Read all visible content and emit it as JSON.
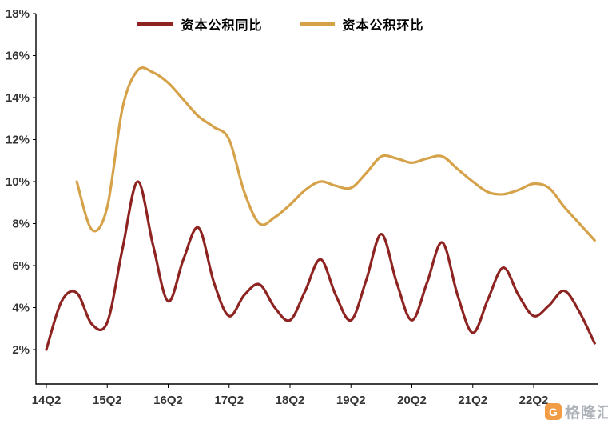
{
  "watermark": {
    "logo_letter": "G",
    "text": "格隆汇",
    "logo_color": "#F08519",
    "text_color": "#9aa0a8"
  },
  "chart_data": {
    "type": "line",
    "title": "",
    "legend_position": "top",
    "grid": false,
    "background": "#ffffff",
    "axis_color": "#000000",
    "y_axis": {
      "min": 2,
      "max": 18,
      "step": 2,
      "unit": "%",
      "tick_labels": [
        "2%",
        "4%",
        "6%",
        "8%",
        "10%",
        "12%",
        "14%",
        "16%",
        "18%"
      ]
    },
    "x_axis": {
      "tick_labels": [
        "14Q2",
        "15Q2",
        "16Q2",
        "17Q2",
        "18Q2",
        "19Q2",
        "20Q2",
        "21Q2",
        "22Q2"
      ]
    },
    "categories": [
      "14Q2",
      "14Q3",
      "14Q4",
      "15Q1",
      "15Q2",
      "15Q3",
      "15Q4",
      "16Q1",
      "16Q2",
      "16Q3",
      "16Q4",
      "17Q1",
      "17Q2",
      "17Q3",
      "17Q4",
      "18Q1",
      "18Q2",
      "18Q3",
      "18Q4",
      "19Q1",
      "19Q2",
      "19Q3",
      "19Q4",
      "20Q1",
      "20Q2",
      "20Q3",
      "20Q4",
      "21Q1",
      "21Q2",
      "21Q3",
      "21Q4",
      "22Q1",
      "22Q2",
      "22Q3",
      "22Q4",
      "23Q1",
      "23Q2"
    ],
    "series": [
      {
        "id": "yoy",
        "name": "资本公积同比",
        "color": "#8E2421",
        "values": [
          2.0,
          4.3,
          4.7,
          3.2,
          3.3,
          6.8,
          10.0,
          7.0,
          4.3,
          6.3,
          7.8,
          5.2,
          3.6,
          4.6,
          5.1,
          4.0,
          3.4,
          4.8,
          6.3,
          4.6,
          3.4,
          5.3,
          7.5,
          5.2,
          3.4,
          5.2,
          7.1,
          4.6,
          2.8,
          4.4,
          5.9,
          4.6,
          3.6,
          4.1,
          4.8,
          3.8,
          2.3
        ]
      },
      {
        "id": "qoq",
        "name": "资本公积环比",
        "color": "#D5A249",
        "values": [
          null,
          null,
          10.0,
          7.7,
          8.8,
          13.5,
          15.3,
          15.2,
          14.7,
          13.9,
          13.1,
          12.6,
          12.0,
          9.5,
          8.0,
          8.3,
          8.9,
          9.6,
          10.0,
          9.8,
          9.7,
          10.4,
          11.2,
          11.1,
          10.9,
          11.1,
          11.2,
          10.6,
          10.0,
          9.5,
          9.4,
          9.6,
          9.9,
          9.7,
          8.8,
          8.0,
          7.2
        ]
      }
    ]
  }
}
